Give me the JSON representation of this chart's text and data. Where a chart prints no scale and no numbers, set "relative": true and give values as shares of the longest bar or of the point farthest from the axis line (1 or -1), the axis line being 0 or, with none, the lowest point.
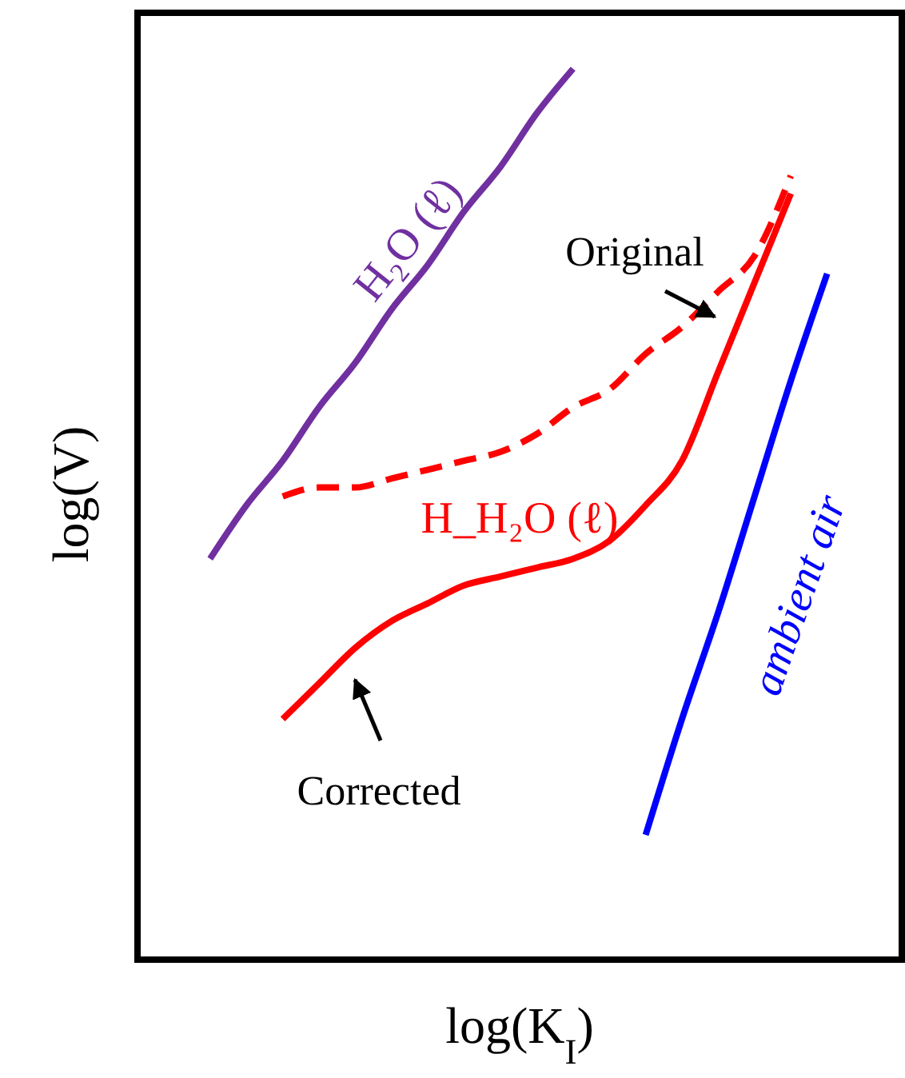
{
  "chart_data": {
    "type": "line",
    "relative": true,
    "xlabel": "log(K$_{I}$)",
    "ylabel": "log(V)",
    "categories": [
      null,
      null,
      null,
      null,
      null,
      null,
      null,
      null,
      null,
      null,
      null,
      null,
      null,
      null,
      null,
      null,
      null,
      null,
      null,
      null,
      null
    ],
    "series": [
      {
        "name": "H₂O (ℓ)",
        "color": "#7030a0",
        "values": [
          null,
          null,
          0.45,
          0.51,
          0.56,
          0.62,
          0.67,
          0.73,
          0.78,
          0.84,
          0.89,
          0.95,
          1.0,
          null,
          null,
          null,
          null,
          null,
          null,
          null,
          null
        ]
      },
      {
        "color": "#ff0000",
        "line_style": "dashed",
        "values": [
          null,
          null,
          null,
          null,
          0.52,
          0.53,
          0.53,
          0.54,
          0.55,
          0.56,
          0.57,
          0.59,
          0.62,
          0.64,
          0.68,
          0.71,
          0.75,
          0.79,
          0.88,
          null,
          null
        ]
      },
      {
        "name": "H_H₂O (ℓ)",
        "color": "#ff0000",
        "values": [
          null,
          null,
          null,
          null,
          0.27,
          0.31,
          0.35,
          0.38,
          0.4,
          0.42,
          0.43,
          0.44,
          0.45,
          0.47,
          0.51,
          0.56,
          0.66,
          0.76,
          0.86,
          null,
          null
        ]
      },
      {
        "name": "ambient air",
        "color": "#0000ff",
        "values": [
          null,
          null,
          null,
          null,
          null,
          null,
          null,
          null,
          null,
          null,
          null,
          null,
          null,
          null,
          0.14,
          0.27,
          0.39,
          0.52,
          0.65,
          0.77,
          null
        ]
      }
    ],
    "annotations": [
      "Original",
      "Corrected"
    ]
  }
}
